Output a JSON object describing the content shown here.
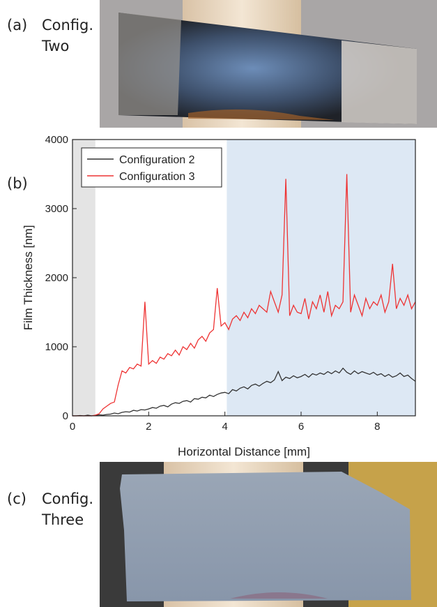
{
  "panels": [
    {
      "label": "(a)",
      "caption": [
        "Config.",
        "Two"
      ]
    },
    {
      "label": "(b)"
    },
    {
      "label": "(c)",
      "caption": [
        "Config.",
        "Three"
      ]
    }
  ],
  "chart_data": {
    "type": "line",
    "x_label": "Horizontal Distance [mm]",
    "y_label": "Film Thickness [nm]",
    "xlim": [
      0,
      9
    ],
    "xticks": [
      0,
      2,
      4,
      6,
      8
    ],
    "ylim": [
      0,
      4000
    ],
    "yticks": [
      0,
      1000,
      2000,
      3000,
      4000
    ],
    "legend": "upper-left",
    "shaded_regions": [
      {
        "xlim": [
          0,
          0.6
        ],
        "color": "#e4e4e4"
      },
      {
        "xlim": [
          4.05,
          9
        ],
        "color": "#dde8f4"
      }
    ],
    "x": [
      0,
      0.1,
      0.2,
      0.3,
      0.4,
      0.5,
      0.6,
      0.7,
      0.8,
      0.9,
      1,
      1.1,
      1.2,
      1.3,
      1.4,
      1.5,
      1.6,
      1.7,
      1.8,
      1.9,
      2,
      2.1,
      2.2,
      2.3,
      2.4,
      2.5,
      2.6,
      2.7,
      2.8,
      2.9,
      3,
      3.1,
      3.2,
      3.3,
      3.4,
      3.5,
      3.6,
      3.7,
      3.8,
      3.9,
      4,
      4.1,
      4.2,
      4.3,
      4.4,
      4.5,
      4.6,
      4.7,
      4.8,
      4.9,
      5,
      5.1,
      5.2,
      5.3,
      5.4,
      5.5,
      5.6,
      5.7,
      5.8,
      5.9,
      6,
      6.1,
      6.2,
      6.3,
      6.4,
      6.5,
      6.6,
      6.7,
      6.8,
      6.9,
      7,
      7.1,
      7.2,
      7.3,
      7.4,
      7.5,
      7.6,
      7.7,
      7.8,
      7.9,
      8,
      8.1,
      8.2,
      8.3,
      8.4,
      8.5,
      8.6,
      8.7,
      8.8,
      8.9,
      9
    ],
    "series": [
      {
        "name": "Configuration 2",
        "color": "#333333",
        "values": [
          0,
          0,
          5,
          0,
          10,
          0,
          5,
          15,
          10,
          20,
          25,
          40,
          30,
          50,
          60,
          55,
          80,
          70,
          90,
          85,
          100,
          120,
          110,
          140,
          150,
          130,
          170,
          190,
          180,
          210,
          220,
          200,
          250,
          240,
          270,
          260,
          300,
          280,
          310,
          330,
          340,
          320,
          380,
          360,
          400,
          420,
          390,
          440,
          460,
          430,
          470,
          500,
          480,
          520,
          640,
          510,
          560,
          540,
          580,
          550,
          570,
          600,
          560,
          610,
          590,
          620,
          600,
          640,
          610,
          650,
          620,
          690,
          630,
          600,
          650,
          610,
          640,
          620,
          600,
          630,
          590,
          610,
          570,
          600,
          560,
          580,
          620,
          570,
          590,
          540,
          500
        ]
      },
      {
        "name": "Configuration 3",
        "color": "#ee3333",
        "values": [
          0,
          0,
          0,
          0,
          0,
          0,
          10,
          30,
          100,
          140,
          180,
          200,
          450,
          650,
          620,
          700,
          680,
          750,
          720,
          1650,
          750,
          800,
          760,
          850,
          820,
          900,
          870,
          950,
          880,
          1000,
          960,
          1050,
          980,
          1100,
          1150,
          1080,
          1200,
          1250,
          1850,
          1300,
          1350,
          1250,
          1400,
          1450,
          1380,
          1500,
          1420,
          1550,
          1480,
          1600,
          1550,
          1500,
          1800,
          1650,
          1500,
          1750,
          3430,
          1450,
          1600,
          1500,
          1480,
          1700,
          1400,
          1650,
          1550,
          1750,
          1500,
          1800,
          1450,
          1600,
          1550,
          1650,
          3500,
          1500,
          1750,
          1600,
          1450,
          1700,
          1550,
          1650,
          1600,
          1750,
          1500,
          1650,
          2200,
          1550,
          1700,
          1600,
          1750,
          1550,
          1650
        ]
      }
    ]
  }
}
